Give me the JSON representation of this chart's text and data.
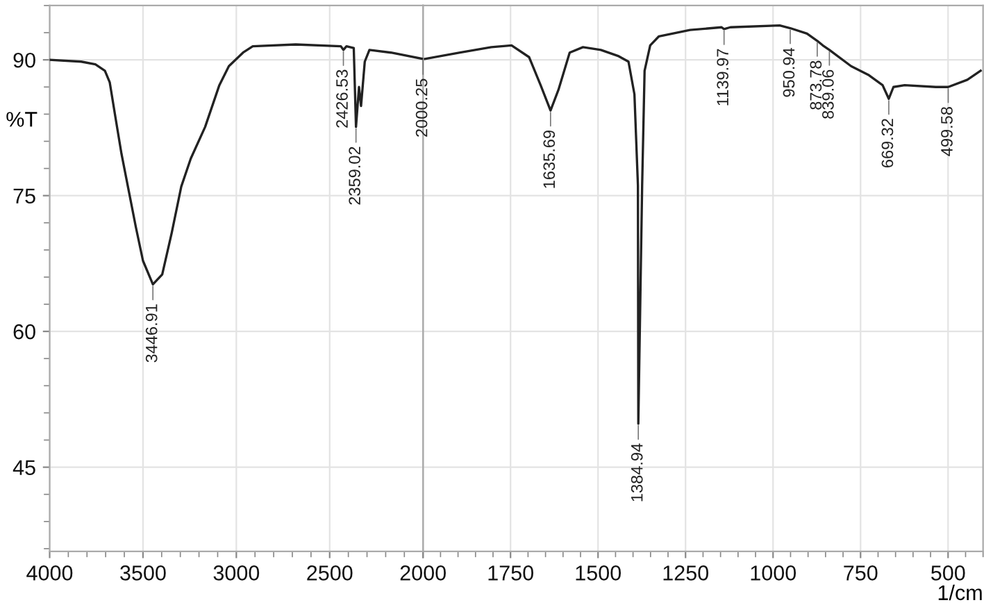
{
  "chart_data": [
    {
      "type": "line",
      "ylabel": "%T",
      "x": [
        4000,
        3831,
        3755,
        3704,
        3678,
        3648,
        3615,
        3576,
        3538,
        3500,
        3446.91,
        3397,
        3346,
        3295,
        3244,
        3167,
        3091,
        3040,
        2964,
        2912,
        2682,
        2440,
        2426.53,
        2410,
        2371,
        2359.02,
        2343,
        2332,
        2312,
        2287,
        2172,
        2000.25
      ],
      "series": [
        {
          "color": "#222222",
          "values": [
            90,
            89.8,
            89.5,
            88.8,
            87.5,
            83.7,
            79.6,
            75.5,
            71.5,
            67.8,
            65.2,
            66.3,
            70.9,
            76.0,
            79.1,
            82.6,
            87.2,
            89.3,
            90.8,
            91.5,
            91.7,
            91.5,
            91.1,
            91.5,
            91.3,
            82.6,
            87.0,
            84.9,
            89.8,
            91.1,
            90.8,
            90.1
          ]
        }
      ],
      "xlim": [
        4000,
        2000
      ],
      "xticks": [
        4000,
        3500,
        3000,
        2500,
        {
          "value": 2000,
          "label": null
        }
      ],
      "ylim": [
        35.7,
        96
      ],
      "yticks": [
        45,
        60,
        75,
        90
      ],
      "grid": true,
      "marker": "none",
      "line_style": "solid",
      "annotations": [
        {
          "text": "3446.91",
          "x": 3446.91,
          "y": 65.2
        },
        {
          "text": "2426.53",
          "x": 2426.53,
          "y": 91.1
        },
        {
          "text": "2359.02",
          "x": 2359.02,
          "y": 82.6
        },
        {
          "text": "2000.25",
          "x": 2000.25,
          "y": 90.1
        }
      ]
    },
    {
      "type": "line",
      "xlabel": "1/cm",
      "x": [
        1995,
        1894,
        1805,
        1747,
        1697,
        1664,
        1635.69,
        1613,
        1581,
        1543,
        1492,
        1441,
        1413,
        1396,
        1386,
        1384.94,
        1374,
        1367,
        1351,
        1326,
        1237,
        1147,
        1139.97,
        1122,
        981,
        950.94,
        903,
        873.78,
        858,
        839.06,
        777,
        726,
        687,
        669.32,
        656,
        624,
        535,
        499.58,
        445,
        407
      ],
      "series": [
        {
          "color": "#222222",
          "values": [
            90.1,
            90.8,
            91.4,
            91.6,
            90.3,
            87.2,
            84.4,
            86.7,
            90.8,
            91.4,
            91.1,
            90.4,
            89.8,
            86.2,
            76.1,
            49.8,
            76.1,
            88.8,
            91.6,
            92.6,
            93.3,
            93.6,
            93.4,
            93.6,
            93.8,
            93.5,
            92.9,
            92.1,
            91.6,
            91.1,
            89.3,
            88.3,
            87.2,
            85.7,
            87.0,
            87.2,
            87.0,
            87.0,
            87.8,
            88.8
          ]
        }
      ],
      "xlim": [
        2000,
        400
      ],
      "xticks": [
        2000,
        1750,
        1500,
        1250,
        1000,
        750,
        500
      ],
      "ylim": [
        35.7,
        96
      ],
      "yticks": [
        45,
        60,
        75,
        90
      ],
      "tick_labels": "x",
      "grid": true,
      "marker": "none",
      "line_style": "solid",
      "annotations": [
        {
          "text": "1635.69",
          "x": 1635.69,
          "y": 84.4
        },
        {
          "text": "1384.94",
          "x": 1384.94,
          "y": 49.8
        },
        {
          "text": "1139.97",
          "x": 1139.97,
          "y": 93.4
        },
        {
          "text": "950.94",
          "x": 950.94,
          "y": 93.5
        },
        {
          "text": "873.78",
          "x": 873.78,
          "y": 92.1
        },
        {
          "text": "839.06",
          "x": 839.06,
          "y": 91.1
        },
        {
          "text": "669.32",
          "x": 669.32,
          "y": 85.7
        },
        {
          "text": "499.58",
          "x": 499.58,
          "y": 87.0
        }
      ]
    }
  ]
}
